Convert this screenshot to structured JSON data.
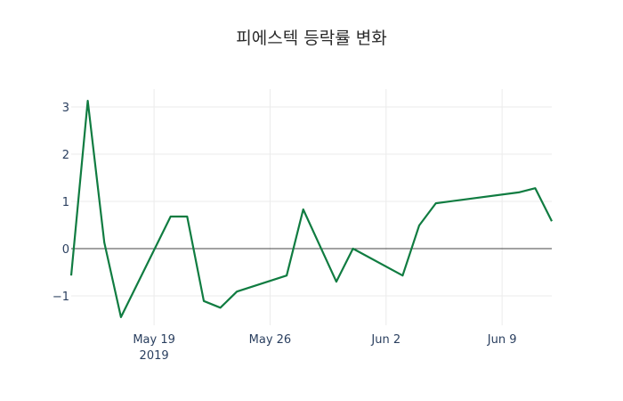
{
  "chart_data": {
    "type": "line",
    "title": "피에스텍 등락률 변화",
    "xlabel": "",
    "ylabel": "",
    "x": [
      "2019-05-14",
      "2019-05-15",
      "2019-05-16",
      "2019-05-17",
      "2019-05-20",
      "2019-05-21",
      "2019-05-22",
      "2019-05-23",
      "2019-05-24",
      "2019-05-27",
      "2019-05-28",
      "2019-05-30",
      "2019-05-31",
      "2019-06-03",
      "2019-06-04",
      "2019-06-05",
      "2019-06-10",
      "2019-06-11",
      "2019-06-12"
    ],
    "series": [
      {
        "name": "등락률",
        "color": "#107c41",
        "values": [
          -0.57,
          3.13,
          0.13,
          -1.45,
          0.68,
          0.68,
          -1.11,
          -1.25,
          -0.91,
          -0.57,
          0.83,
          -0.7,
          0.0,
          -0.57,
          0.49,
          0.96,
          1.19,
          1.28,
          0.58
        ]
      }
    ],
    "x_ticks": [
      {
        "label": "May 19",
        "sublabel": "2019",
        "date": "2019-05-19"
      },
      {
        "label": "May 26",
        "date": "2019-05-26"
      },
      {
        "label": "Jun 2",
        "date": "2019-06-02"
      },
      {
        "label": "Jun 9",
        "date": "2019-06-09"
      }
    ],
    "y_ticks": [
      -1,
      0,
      1,
      2,
      3
    ],
    "y_tick_labels": [
      "−1",
      "0",
      "1",
      "2",
      "3"
    ],
    "ylim": [
      -1.6,
      3.4
    ],
    "xlim": [
      "2019-05-14",
      "2019-06-12"
    ],
    "grid": true,
    "zero_line": true,
    "legend": false
  }
}
